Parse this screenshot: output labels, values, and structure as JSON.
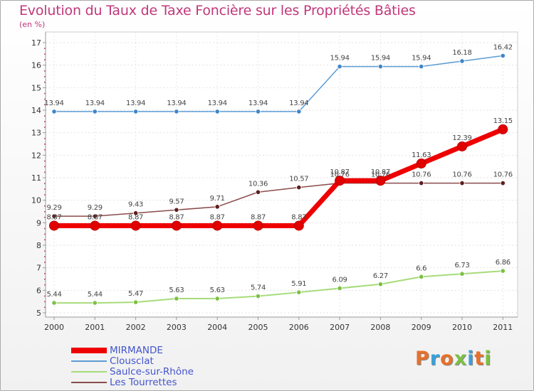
{
  "page": {
    "title": "Evolution du Taux de Taxe Foncière sur les Propriétés Bâties",
    "subtitle": "(en %)"
  },
  "logo": {
    "text": "Proxiti",
    "letters": [
      "P",
      "r",
      "o",
      "x",
      "i",
      "t",
      "i"
    ],
    "colors": [
      "#e8702a",
      "#3aa0d8",
      "#e8702a",
      "#7cc043",
      "#3aa0d8",
      "#e8702a",
      "#7cc043"
    ]
  },
  "chart_data": {
    "type": "line",
    "title": "Evolution du Taux de Taxe Foncière sur les Propriétés Bâties",
    "ylabel": "(en %)",
    "xlabel": "",
    "categories": [
      "2000",
      "2001",
      "2002",
      "2003",
      "2004",
      "2005",
      "2006",
      "2007",
      "2008",
      "2009",
      "2010",
      "2011"
    ],
    "ylim": [
      5,
      17
    ],
    "yticks": [
      "5",
      "6",
      "7",
      "8",
      "9",
      "10",
      "11",
      "12",
      "13",
      "14",
      "15",
      "16",
      "17"
    ],
    "grid": true,
    "legend_position": "bottom-left",
    "series": [
      {
        "name": "Clousclat",
        "color": "#5b9bd5",
        "marker_color": "#3f86c8",
        "values": [
          13.94,
          13.94,
          13.94,
          13.94,
          13.94,
          13.94,
          13.94,
          15.94,
          15.94,
          15.94,
          16.18,
          16.42
        ],
        "labels": [
          "13.94",
          "13.94",
          "13.94",
          "13.94",
          "13.94",
          "13.94",
          "13.94",
          "15.94",
          "15.94",
          "15.94",
          "16.18",
          "16.42"
        ]
      },
      {
        "name": "Saulce-sur-Rhône",
        "color": "#a6dc7a",
        "marker_color": "#7cc043",
        "values": [
          5.44,
          5.44,
          5.47,
          5.63,
          5.63,
          5.74,
          5.91,
          6.09,
          6.27,
          6.6,
          6.73,
          6.86
        ],
        "labels": [
          "5.44",
          "5.44",
          "5.47",
          "5.63",
          "5.63",
          "5.74",
          "5.91",
          "6.09",
          "6.27",
          "6.6",
          "6.73",
          "6.86"
        ]
      },
      {
        "name": "Les Tourrettes",
        "color": "#8a4b4b",
        "marker_color": "#5e1f1f",
        "values": [
          9.29,
          9.29,
          9.43,
          9.57,
          9.71,
          10.36,
          10.57,
          10.76,
          10.76,
          10.76,
          10.76,
          10.76
        ],
        "labels": [
          "9.29",
          "9.29",
          "9.43",
          "9.57",
          "9.71",
          "10.36",
          "10.57",
          "10.76",
          "10.76",
          "10.76",
          "10.76",
          "10.76"
        ]
      },
      {
        "name": "MIRMANDE",
        "color": "#ee0000",
        "marker_color": "#e00000",
        "values": [
          8.87,
          8.87,
          8.87,
          8.87,
          8.87,
          8.87,
          8.87,
          10.87,
          10.87,
          11.63,
          12.39,
          13.15
        ],
        "labels": [
          "8.87",
          "8.87",
          "8.87",
          "8.87",
          "8.87",
          "8.87",
          "8.87",
          "10.87",
          "10.87",
          "11.63",
          "12.39",
          "13.15"
        ]
      }
    ]
  }
}
